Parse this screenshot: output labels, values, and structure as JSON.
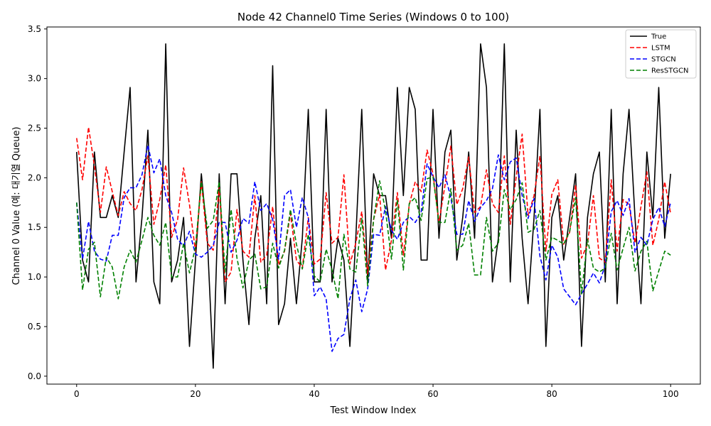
{
  "chart_data": {
    "type": "line",
    "title": "Node 42 Channel0 Time Series (Windows 0 to 100)",
    "xlabel": "Test Window Index",
    "ylabel": "Channel 0 Value (예: 대기열 Queue)",
    "xlim": [
      -5,
      105
    ],
    "ylim": [
      -0.08,
      3.52
    ],
    "xticks": [
      0,
      20,
      40,
      60,
      80,
      100
    ],
    "yticks": [
      0.0,
      0.5,
      1.0,
      1.5,
      2.0,
      2.5,
      3.0,
      3.5
    ],
    "x": [
      0,
      1,
      2,
      3,
      4,
      5,
      6,
      7,
      8,
      9,
      10,
      11,
      12,
      13,
      14,
      15,
      16,
      17,
      18,
      19,
      20,
      21,
      22,
      23,
      24,
      25,
      26,
      27,
      28,
      29,
      30,
      31,
      32,
      33,
      34,
      35,
      36,
      37,
      38,
      39,
      40,
      41,
      42,
      43,
      44,
      45,
      46,
      47,
      48,
      49,
      50,
      51,
      52,
      53,
      54,
      55,
      56,
      57,
      58,
      59,
      60,
      61,
      62,
      63,
      64,
      65,
      66,
      67,
      68,
      69,
      70,
      71,
      72,
      73,
      74,
      75,
      76,
      77,
      78,
      79,
      80,
      81,
      82,
      83,
      84,
      85,
      86,
      87,
      88,
      89,
      90,
      91,
      92,
      93,
      94,
      95,
      96,
      97,
      98,
      99,
      100
    ],
    "legend_position": "top-right",
    "grid": false,
    "series": [
      {
        "name": "True",
        "color": "#000000",
        "dash": "solid",
        "values": [
          2.26,
          1.17,
          0.95,
          2.26,
          1.6,
          1.6,
          1.82,
          1.6,
          2.26,
          2.91,
          0.95,
          1.6,
          2.48,
          0.95,
          0.73,
          3.35,
          0.95,
          1.17,
          1.6,
          0.3,
          1.17,
          2.04,
          1.39,
          0.08,
          2.04,
          0.73,
          2.04,
          2.04,
          1.17,
          0.52,
          1.39,
          1.82,
          0.73,
          3.13,
          0.52,
          0.73,
          1.39,
          0.73,
          1.39,
          2.69,
          0.95,
          0.95,
          2.69,
          0.95,
          1.39,
          1.17,
          0.3,
          1.39,
          2.69,
          0.95,
          2.04,
          1.82,
          1.82,
          1.39,
          2.91,
          1.82,
          2.91,
          2.69,
          1.17,
          1.17,
          2.69,
          1.39,
          2.26,
          2.48,
          1.17,
          1.6,
          2.26,
          1.39,
          3.35,
          2.91,
          0.95,
          1.39,
          3.35,
          0.95,
          2.48,
          1.39,
          0.73,
          1.6,
          2.69,
          0.3,
          1.6,
          1.82,
          1.17,
          1.6,
          2.04,
          0.3,
          1.6,
          2.04,
          2.26,
          0.95,
          2.69,
          0.73,
          2.04,
          2.69,
          1.6,
          0.73,
          2.26,
          1.6,
          2.91,
          1.39,
          2.04
        ]
      },
      {
        "name": "LSTM",
        "color": "#ff0000",
        "dash": "dashed",
        "values": [
          2.4,
          1.98,
          2.51,
          2.12,
          1.65,
          2.11,
          1.86,
          1.62,
          1.86,
          1.74,
          1.67,
          1.88,
          2.22,
          1.53,
          1.78,
          2.13,
          1.4,
          1.58,
          2.1,
          1.73,
          1.26,
          1.96,
          1.34,
          1.27,
          1.9,
          0.95,
          1.05,
          1.68,
          1.26,
          1.2,
          1.82,
          1.15,
          1.22,
          1.71,
          1.12,
          1.26,
          1.64,
          1.17,
          1.09,
          1.6,
          1.13,
          1.18,
          1.85,
          1.34,
          1.4,
          2.03,
          1.13,
          1.34,
          1.66,
          1.03,
          1.58,
          1.83,
          1.07,
          1.37,
          1.85,
          1.22,
          1.73,
          1.96,
          1.86,
          2.28,
          2.04,
          1.55,
          1.92,
          2.32,
          1.73,
          1.89,
          2.21,
          1.65,
          1.71,
          2.08,
          1.74,
          1.65,
          2.22,
          1.53,
          2.01,
          2.44,
          1.62,
          1.82,
          2.22,
          1.26,
          1.83,
          1.98,
          1.33,
          1.45,
          1.93,
          1.19,
          1.33,
          1.82,
          1.19,
          1.15,
          1.98,
          1.26,
          1.78,
          1.73,
          1.34,
          1.71,
          2.06,
          1.32,
          1.58,
          1.96,
          1.64
        ]
      },
      {
        "name": "STGCN",
        "color": "#0000ff",
        "dash": "dashed",
        "values": [
          1.75,
          1.18,
          1.56,
          1.26,
          1.18,
          1.16,
          1.42,
          1.42,
          1.8,
          1.9,
          1.9,
          2.03,
          2.33,
          2.05,
          2.19,
          1.82,
          1.65,
          1.38,
          1.31,
          1.46,
          1.23,
          1.2,
          1.25,
          1.32,
          1.55,
          1.55,
          1.25,
          1.37,
          1.59,
          1.54,
          1.96,
          1.67,
          1.74,
          1.58,
          1.18,
          1.82,
          1.88,
          1.5,
          1.8,
          1.6,
          0.81,
          0.9,
          0.78,
          0.25,
          0.38,
          0.42,
          0.78,
          0.97,
          0.65,
          0.88,
          1.43,
          1.42,
          1.71,
          1.47,
          1.38,
          1.55,
          1.61,
          1.55,
          1.65,
          2.14,
          2.01,
          1.9,
          2.03,
          1.8,
          1.43,
          1.43,
          1.77,
          1.56,
          1.7,
          1.77,
          1.89,
          2.23,
          1.98,
          2.16,
          2.2,
          1.82,
          1.59,
          1.79,
          1.21,
          0.97,
          1.32,
          1.2,
          0.88,
          0.8,
          0.72,
          0.83,
          0.93,
          1.04,
          0.94,
          1.12,
          1.66,
          1.77,
          1.62,
          1.79,
          1.25,
          1.4,
          1.32,
          1.58,
          1.7,
          1.51,
          1.75
        ]
      },
      {
        "name": "ResSTGCN",
        "color": "#008000",
        "dash": "dashed",
        "values": [
          1.75,
          0.87,
          1.28,
          1.35,
          0.8,
          1.2,
          1.1,
          0.78,
          1.1,
          1.27,
          1.15,
          1.37,
          1.6,
          1.42,
          1.32,
          1.55,
          1.0,
          1.0,
          1.34,
          1.04,
          1.3,
          1.96,
          1.49,
          1.57,
          1.96,
          1.05,
          1.68,
          1.19,
          0.89,
          1.17,
          1.23,
          0.88,
          0.9,
          1.34,
          1.09,
          1.27,
          1.68,
          1.33,
          1.08,
          1.43,
          1.01,
          0.95,
          1.28,
          1.07,
          0.78,
          1.43,
          1.08,
          1.05,
          1.59,
          0.91,
          1.58,
          1.97,
          1.67,
          1.18,
          1.78,
          1.07,
          1.74,
          1.8,
          1.57,
          1.99,
          2.01,
          1.55,
          1.55,
          1.89,
          1.27,
          1.32,
          1.54,
          1.02,
          1.02,
          1.6,
          1.26,
          1.34,
          1.88,
          1.68,
          1.78,
          1.95,
          1.45,
          1.48,
          1.67,
          1.17,
          1.4,
          1.37,
          1.33,
          1.46,
          1.8,
          0.83,
          1.38,
          1.09,
          1.05,
          1.09,
          1.44,
          1.07,
          1.29,
          1.5,
          1.06,
          1.26,
          1.36,
          0.86,
          1.06,
          1.26,
          1.22
        ]
      }
    ]
  }
}
